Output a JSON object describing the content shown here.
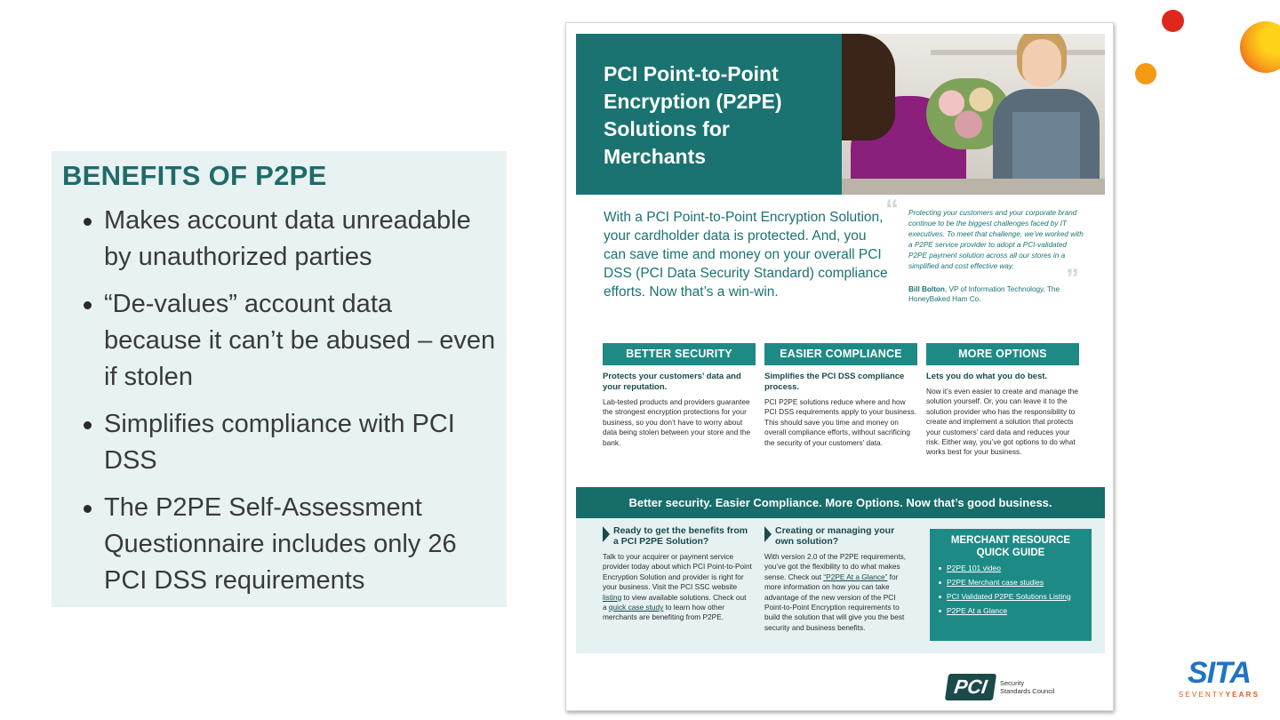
{
  "benefits": {
    "title": "BENEFITS OF P2PE",
    "items": [
      "Makes account data unreadable by unauthorized parties",
      "“De-values” account data because it can’t be abused – even if stolen",
      "Simplifies compliance with PCI DSS",
      "The P2PE Self-Assessment Questionnaire includes only 26 PCI DSS requirements"
    ]
  },
  "flyer": {
    "title": "PCI Point-to-Point Encryption (P2PE) Solutions for Merchants",
    "intro": "With a PCI Point-to-Point Encryption Solution, your cardholder data is protected. And, you can save time and money on your overall PCI DSS (PCI Data Security Standard) compliance efforts. Now that’s a win-win.",
    "quote": "Protecting your customers and your corporate brand continue to be the biggest challenges faced by IT executives. To meet that challenge, we’ve worked with a P2PE service provider to adopt a PCI-validated P2PE payment solution across all our stores in a simplified and cost effective way.",
    "quote_author_name": "Bill Bolton",
    "quote_author_role": ", VP of Information Technology, The HoneyBaked Ham Co.",
    "columns": [
      {
        "heading": "BETTER SECURITY",
        "subheading": "Protects your customers’ data and your reputation.",
        "body": "Lab-tested products and providers guarantee the strongest encryption protections for your business, so you don’t have to worry about data being stolen between your store and the bank."
      },
      {
        "heading": "EASIER COMPLIANCE",
        "subheading": "Simplifies the PCI DSS compliance process.",
        "body": "PCI P2PE solutions reduce where and how PCI DSS requirements apply to your business. This should save you time and money on overall compliance efforts, without sacrificing the security of your customers’ data."
      },
      {
        "heading": "MORE OPTIONS",
        "subheading": "Lets you do what you do best.",
        "body": "Now it’s even easier to create and manage the solution yourself. Or, you can leave it to the solution provider who has the responsibility to create and implement a solution that protects your customers’ card data and reduces your risk. Either way, you’ve got options to do what works best for your business."
      }
    ],
    "banner": "Better security. Easier Compliance. More Options. Now that’s good business.",
    "bottom_left": {
      "heading": "Ready to get the benefits from a PCI P2PE Solution?",
      "body_1": "Talk to your acquirer or payment service provider today about which PCI Point-to-Point Encryption Solution and provider is right for your business. Visit the PCI SSC website ",
      "link_1": "listing",
      "body_2": " to view available solutions. Check out a ",
      "link_2": "quick case study",
      "body_3": " to learn how other merchants are benefiting from P2PE."
    },
    "bottom_mid": {
      "heading": "Creating or managing your own solution?",
      "body_1": "With version 2.0 of the P2PE requirements, you’ve got the flexibility to do what makes sense. Check out ",
      "link_1": "“P2PE At a Glance”",
      "body_2": " for more information on how you can take advantage of the new version of the PCI Point-to-Point Encryption requirements to build the solution that will give you the best security and business benefits."
    },
    "resource_guide": {
      "title": "MERCHANT RESOURCE QUICK GUIDE",
      "links": [
        "P2PE 101 video",
        "P2PE Merchant case studies",
        "PCI Validated P2PE Solutions Listing",
        "P2PE At a Glance"
      ]
    },
    "pci_logo": {
      "mark": "PCI",
      "line1": "Security",
      "line2": "Standards Council"
    }
  },
  "sita": {
    "word": "SITA",
    "sub_1": "SEVENTY",
    "sub_2": "YEARS"
  },
  "colors": {
    "teal_dark": "#1a7370",
    "teal_mid": "#1e8a86",
    "panel_bg": "#e8f2f3",
    "dot_red": "#e0271b",
    "dot_orange": "#f59a12",
    "sita_blue": "#1f74c4"
  }
}
